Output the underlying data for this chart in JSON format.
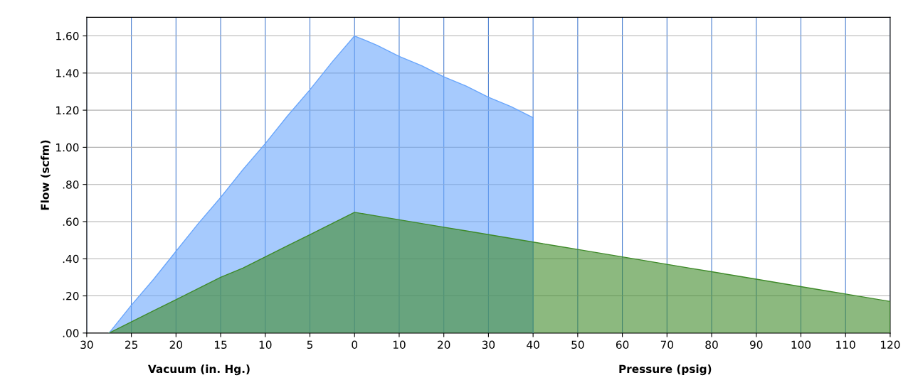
{
  "chart_data": {
    "type": "area",
    "xlabel": "Vacuum (in. Hg.)",
    "ylabel": "Flow (scfm)",
    "annotations": [
      "Pressure (psig)"
    ],
    "categories": [
      "30",
      null,
      "25",
      null,
      "20",
      null,
      "15",
      null,
      "10",
      null,
      "5",
      null,
      "0",
      null,
      "10",
      null,
      "20",
      null,
      "30",
      null,
      "40",
      null,
      "50",
      null,
      "60",
      null,
      "70",
      null,
      "80",
      null,
      "90",
      null,
      "100",
      null,
      "110",
      null,
      "120"
    ],
    "series": [
      {
        "color": "#6aa6fb",
        "values": [
          null,
          0,
          0.15,
          0.29,
          0.44,
          0.59,
          0.73,
          0.88,
          1.02,
          1.17,
          1.31,
          1.46,
          1.6,
          1.55,
          1.49,
          1.44,
          1.38,
          1.33,
          1.27,
          1.22,
          1.16,
          null,
          null,
          null,
          null,
          null,
          null,
          null,
          null,
          null,
          null,
          null,
          null,
          null,
          null,
          null,
          null
        ]
      },
      {
        "color": "#3f8a2a",
        "values": [
          null,
          0,
          0.06,
          0.12,
          0.18,
          0.24,
          0.3,
          0.35,
          0.41,
          0.47,
          0.53,
          0.59,
          0.65,
          0.63,
          0.61,
          0.59,
          0.57,
          0.55,
          0.53,
          0.51,
          0.49,
          0.47,
          0.45,
          0.43,
          0.41,
          0.39,
          0.37,
          0.35,
          0.33,
          0.31,
          0.29,
          0.27,
          0.25,
          0.23,
          0.21,
          0.19,
          0.17
        ]
      }
    ],
    "ylim": [
      0,
      1.7
    ],
    "yticks": [
      {
        "value": 0,
        "label": ".00"
      },
      {
        "value": 0.2,
        "label": ".20"
      },
      {
        "value": 0.4,
        "label": ".40"
      },
      {
        "value": 0.6,
        "label": ".60"
      },
      {
        "value": 0.8,
        "label": ".80"
      },
      {
        "value": 1.0,
        "label": "1.00"
      },
      {
        "value": 1.2,
        "label": "1.20"
      },
      {
        "value": 1.4,
        "label": "1.40"
      },
      {
        "value": 1.6,
        "label": "1.60"
      }
    ],
    "grid": true
  }
}
